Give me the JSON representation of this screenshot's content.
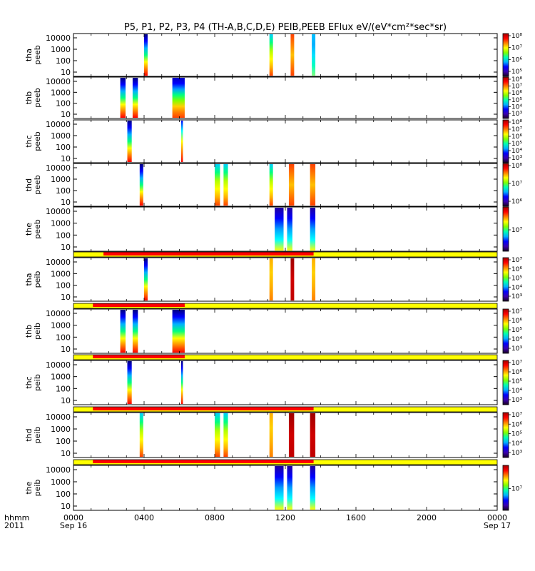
{
  "title": "P5, P1, P2, P3, P4 (TH-A,B,C,D,E) PEIB,PEEB EFlux eV/(eV*cm²*sec*sr)",
  "x_axis": {
    "row_label": "hhmm",
    "year_label": "2011",
    "ticks": [
      {
        "value": "0000",
        "date": "Sep 16"
      },
      {
        "value": "0400",
        "date": ""
      },
      {
        "value": "0800",
        "date": ""
      },
      {
        "value": "1200",
        "date": ""
      },
      {
        "value": "1600",
        "date": ""
      },
      {
        "value": "2000",
        "date": ""
      },
      {
        "value": "0000",
        "date": "Sep 17"
      }
    ]
  },
  "colorscale": [
    "#1a0020",
    "#3a00b0",
    "#0000ff",
    "#00b0ff",
    "#00ffb0",
    "#80ff00",
    "#ffff00",
    "#ff8000",
    "#ff0000",
    "#a00000"
  ],
  "bar_colors": {
    "on": "#ff0000",
    "off": "#ffff00"
  },
  "chart_data": {
    "type": "heatmap",
    "x_range_hours": [
      0,
      24
    ],
    "y_scale": "log",
    "y_ticks": [
      "10",
      "100",
      "1000",
      "10000"
    ],
    "panels": [
      {
        "label1": "tha",
        "label2": "peeb",
        "cbar_ticks": [
          "10⁸",
          "10⁷",
          "10⁶",
          "10⁵"
        ],
        "segments": [
          {
            "start": 4.0,
            "end": 4.2,
            "palette": "A"
          },
          {
            "start": 11.1,
            "end": 11.3,
            "palette": "B"
          },
          {
            "start": 12.3,
            "end": 12.5,
            "palette": "C"
          },
          {
            "start": 13.5,
            "end": 13.7,
            "palette": "D"
          }
        ]
      },
      {
        "label1": "thb",
        "label2": "peeb",
        "cbar_ticks": [
          "10⁸",
          "10⁷",
          "10⁶",
          "10⁵",
          "10⁴",
          "10³"
        ],
        "segments": [
          {
            "start": 2.65,
            "end": 2.95,
            "palette": "A"
          },
          {
            "start": 3.35,
            "end": 3.65,
            "palette": "A"
          },
          {
            "start": 5.6,
            "end": 6.3,
            "palette": "E"
          }
        ]
      },
      {
        "label1": "thc",
        "label2": "peeb",
        "cbar_ticks": [
          "10⁸",
          "10⁷",
          "10⁶",
          "10⁵",
          "10⁴",
          "10³"
        ],
        "segments": [
          {
            "start": 3.05,
            "end": 3.3,
            "palette": "A"
          },
          {
            "start": 6.1,
            "end": 6.2,
            "palette": "F"
          }
        ]
      },
      {
        "label1": "thd",
        "label2": "peeb",
        "cbar_ticks": [
          "10⁸",
          "10⁷",
          "10⁶"
        ],
        "segments": [
          {
            "start": 3.75,
            "end": 3.95,
            "palette": "A"
          },
          {
            "start": 8.0,
            "end": 8.3,
            "palette": "B"
          },
          {
            "start": 8.5,
            "end": 8.75,
            "palette": "B"
          },
          {
            "start": 11.1,
            "end": 11.3,
            "palette": "B"
          },
          {
            "start": 12.2,
            "end": 12.5,
            "palette": "C"
          },
          {
            "start": 13.4,
            "end": 13.7,
            "palette": "C"
          }
        ]
      },
      {
        "label1": "the",
        "label2": "peeb",
        "cbar_ticks": [
          "10⁷"
        ],
        "segments": [
          {
            "start": 11.4,
            "end": 11.9,
            "palette": "G"
          },
          {
            "start": 12.1,
            "end": 12.4,
            "palette": "G"
          },
          {
            "start": 13.4,
            "end": 13.7,
            "palette": "G"
          }
        ]
      },
      {
        "label1": "tha",
        "label2": "peib",
        "cbar_ticks": [
          "10⁷",
          "10⁶",
          "10⁵",
          "10⁴",
          "10³"
        ],
        "bar": {
          "on_start": 1.7,
          "on_end": 13.6
        },
        "segments": [
          {
            "start": 4.0,
            "end": 4.2,
            "palette": "A"
          },
          {
            "start": 11.1,
            "end": 11.3,
            "palette": "H"
          },
          {
            "start": 12.3,
            "end": 12.5,
            "palette": "I"
          },
          {
            "start": 13.5,
            "end": 13.7,
            "palette": "H"
          }
        ]
      },
      {
        "label1": "thb",
        "label2": "peib",
        "cbar_ticks": [
          "10⁷",
          "10⁶",
          "10⁵",
          "10⁴",
          "10³"
        ],
        "bar": {
          "on_start": 1.1,
          "on_end": 6.3
        },
        "segments": [
          {
            "start": 2.65,
            "end": 2.95,
            "palette": "A"
          },
          {
            "start": 3.35,
            "end": 3.65,
            "palette": "A"
          },
          {
            "start": 5.6,
            "end": 6.3,
            "palette": "A"
          }
        ]
      },
      {
        "label1": "thc",
        "label2": "peib",
        "cbar_ticks": [
          "10⁷",
          "10⁶",
          "10⁵",
          "10⁴",
          "10³"
        ],
        "bar": {
          "on_start": 1.1,
          "on_end": 6.3
        },
        "segments": [
          {
            "start": 3.05,
            "end": 3.3,
            "palette": "A"
          },
          {
            "start": 6.1,
            "end": 6.2,
            "palette": "A"
          }
        ]
      },
      {
        "label1": "thd",
        "label2": "peib",
        "cbar_ticks": [
          "10⁷",
          "10⁶",
          "10⁵",
          "10⁴",
          "10³"
        ],
        "bar": {
          "on_start": 1.1,
          "on_end": 13.6
        },
        "segments": [
          {
            "start": 3.75,
            "end": 3.95,
            "palette": "B"
          },
          {
            "start": 8.0,
            "end": 8.3,
            "palette": "B"
          },
          {
            "start": 8.5,
            "end": 8.75,
            "palette": "B"
          },
          {
            "start": 11.1,
            "end": 11.3,
            "palette": "H"
          },
          {
            "start": 12.2,
            "end": 12.5,
            "palette": "I"
          },
          {
            "start": 13.4,
            "end": 13.7,
            "palette": "I"
          }
        ]
      },
      {
        "label1": "the",
        "label2": "peib",
        "cbar_ticks": [
          "10⁷"
        ],
        "bar": {
          "on_start": 1.1,
          "on_end": 13.6
        },
        "segments": [
          {
            "start": 11.4,
            "end": 11.9,
            "palette": "G"
          },
          {
            "start": 12.1,
            "end": 12.4,
            "palette": "G"
          },
          {
            "start": 13.4,
            "end": 13.7,
            "palette": "G"
          }
        ]
      }
    ]
  }
}
